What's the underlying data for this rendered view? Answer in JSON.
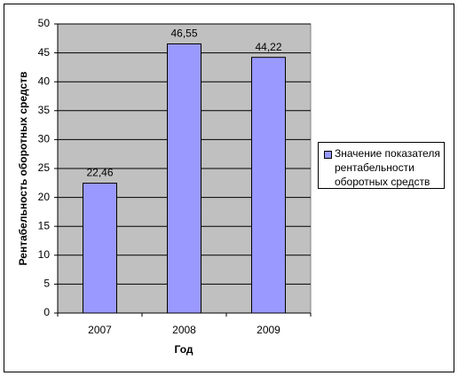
{
  "chart_data": {
    "type": "bar",
    "x_label": "Год",
    "y_label": "Рентабельность оборотных средств",
    "categories": [
      "2007",
      "2008",
      "2009"
    ],
    "series": [
      {
        "name": "Значение показателя рентабельности оборотных средств",
        "color": "#9999ff",
        "values": [
          22.46,
          46.55,
          44.22
        ],
        "value_labels": [
          "22,46",
          "46,55",
          "44,22"
        ]
      }
    ],
    "ylim": [
      0,
      50
    ],
    "yticks": [
      0,
      5,
      10,
      15,
      20,
      25,
      30,
      35,
      40,
      45,
      50
    ],
    "grid": true
  }
}
